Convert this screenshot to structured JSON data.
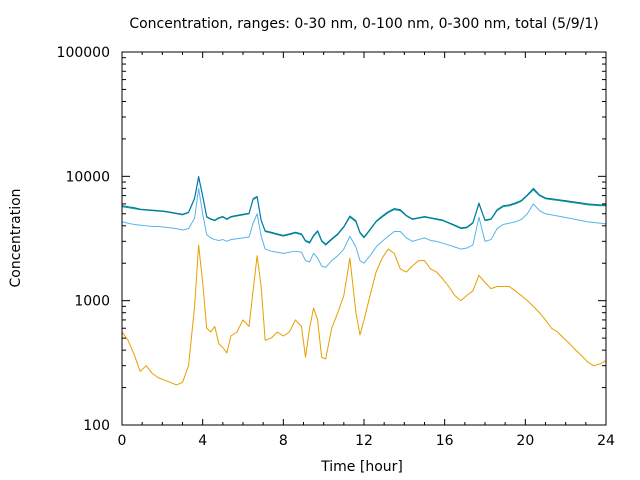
{
  "chart_data": {
    "type": "line",
    "title": "Concentration, ranges: 0-30 nm, 0-100 nm, 0-300 nm, total (5/9/1)",
    "xlabel": "Time [hour]",
    "ylabel": "Concentration",
    "xlim": [
      0,
      24
    ],
    "ylim": [
      100,
      100000
    ],
    "y_scale": "log",
    "grid": false,
    "x_ticks": [
      {
        "value": 0,
        "label": "0"
      },
      {
        "value": 4,
        "label": "4"
      },
      {
        "value": 8,
        "label": "8"
      },
      {
        "value": 12,
        "label": "12"
      },
      {
        "value": 16,
        "label": "16"
      },
      {
        "value": 20,
        "label": "20"
      },
      {
        "value": 24,
        "label": "24"
      }
    ],
    "y_ticks": [
      {
        "value": 100,
        "label": "100"
      },
      {
        "value": 1000,
        "label": "1000"
      },
      {
        "value": 10000,
        "label": "10000"
      },
      {
        "value": 100000,
        "label": "100000"
      }
    ],
    "series": [
      {
        "color": "#e69f00",
        "x": [
          0,
          0.3,
          0.6,
          0.9,
          1.2,
          1.5,
          1.8,
          2.1,
          2.4,
          2.7,
          3.0,
          3.3,
          3.6,
          3.8,
          4.0,
          4.2,
          4.4,
          4.6,
          4.8,
          5.0,
          5.2,
          5.4,
          5.7,
          6.0,
          6.3,
          6.5,
          6.7,
          6.9,
          7.1,
          7.4,
          7.7,
          8.0,
          8.3,
          8.6,
          8.9,
          9.1,
          9.3,
          9.5,
          9.7,
          9.9,
          10.1,
          10.4,
          10.7,
          11.0,
          11.3,
          11.6,
          11.8,
          12.0,
          12.3,
          12.6,
          12.9,
          13.2,
          13.5,
          13.8,
          14.1,
          14.4,
          14.7,
          15.0,
          15.3,
          15.6,
          15.9,
          16.2,
          16.5,
          16.8,
          17.1,
          17.4,
          17.7,
          18.0,
          18.3,
          18.6,
          18.9,
          19.2,
          19.5,
          19.8,
          20.1,
          20.4,
          20.7,
          21.0,
          21.3,
          21.6,
          21.9,
          22.2,
          22.5,
          22.8,
          23.1,
          23.4,
          23.7,
          24.0
        ],
        "values": [
          560,
          480,
          370,
          270,
          300,
          260,
          240,
          230,
          220,
          210,
          220,
          300,
          900,
          2800,
          1400,
          600,
          560,
          620,
          450,
          420,
          380,
          520,
          560,
          700,
          620,
          1200,
          2300,
          1300,
          480,
          500,
          560,
          520,
          560,
          700,
          620,
          350,
          600,
          870,
          700,
          350,
          340,
          600,
          800,
          1100,
          2200,
          800,
          530,
          700,
          1100,
          1700,
          2200,
          2600,
          2400,
          1800,
          1700,
          1900,
          2100,
          2100,
          1800,
          1700,
          1500,
          1300,
          1100,
          1000,
          1100,
          1200,
          1600,
          1400,
          1250,
          1300,
          1300,
          1300,
          1200,
          1100,
          1000,
          900,
          800,
          700,
          600,
          560,
          500,
          450,
          400,
          360,
          320,
          300,
          310,
          330
        ]
      },
      {
        "color": "#56b4e9",
        "x": [
          0,
          0.3,
          0.6,
          0.9,
          1.2,
          1.5,
          1.8,
          2.1,
          2.4,
          2.7,
          3.0,
          3.3,
          3.6,
          3.8,
          4.0,
          4.2,
          4.4,
          4.6,
          4.8,
          5.0,
          5.2,
          5.4,
          5.7,
          6.0,
          6.3,
          6.5,
          6.7,
          6.9,
          7.1,
          7.4,
          7.7,
          8.0,
          8.3,
          8.6,
          8.9,
          9.1,
          9.3,
          9.5,
          9.7,
          9.9,
          10.1,
          10.4,
          10.7,
          11.0,
          11.3,
          11.6,
          11.8,
          12.0,
          12.3,
          12.6,
          12.9,
          13.2,
          13.5,
          13.8,
          14.1,
          14.4,
          14.7,
          15.0,
          15.3,
          15.6,
          15.9,
          16.2,
          16.5,
          16.8,
          17.1,
          17.4,
          17.7,
          18.0,
          18.3,
          18.6,
          18.9,
          19.2,
          19.5,
          19.8,
          20.1,
          20.4,
          20.7,
          21.0,
          21.3,
          21.6,
          21.9,
          22.2,
          22.5,
          22.8,
          23.1,
          23.4,
          23.7,
          24.0
        ],
        "values": [
          4300,
          4200,
          4100,
          4050,
          4000,
          3950,
          3950,
          3900,
          3850,
          3800,
          3700,
          3800,
          4600,
          8000,
          5000,
          3400,
          3200,
          3100,
          3050,
          3100,
          3000,
          3100,
          3150,
          3200,
          3250,
          4200,
          5000,
          3300,
          2600,
          2500,
          2450,
          2400,
          2450,
          2500,
          2450,
          2100,
          2050,
          2400,
          2200,
          1900,
          1850,
          2100,
          2300,
          2600,
          3300,
          2700,
          2100,
          2000,
          2300,
          2700,
          3000,
          3300,
          3600,
          3600,
          3200,
          3000,
          3100,
          3200,
          3050,
          3000,
          2900,
          2800,
          2700,
          2600,
          2650,
          2800,
          4700,
          3000,
          3100,
          3800,
          4100,
          4200,
          4300,
          4500,
          5000,
          6000,
          5300,
          5000,
          4900,
          4800,
          4700,
          4600,
          4500,
          4400,
          4300,
          4250,
          4200,
          4150
        ]
      },
      {
        "color": "#009e73",
        "x": [
          0,
          0.3,
          0.6,
          0.9,
          1.2,
          1.5,
          1.8,
          2.1,
          2.4,
          2.7,
          3.0,
          3.3,
          3.6,
          3.8,
          4.0,
          4.2,
          4.4,
          4.6,
          4.8,
          5.0,
          5.2,
          5.4,
          5.7,
          6.0,
          6.3,
          6.5,
          6.7,
          6.9,
          7.1,
          7.4,
          7.7,
          8.0,
          8.3,
          8.6,
          8.9,
          9.1,
          9.3,
          9.5,
          9.7,
          9.9,
          10.1,
          10.4,
          10.7,
          11.0,
          11.3,
          11.6,
          11.8,
          12.0,
          12.3,
          12.6,
          12.9,
          13.2,
          13.5,
          13.8,
          14.1,
          14.4,
          14.7,
          15.0,
          15.3,
          15.6,
          15.9,
          16.2,
          16.5,
          16.8,
          17.1,
          17.4,
          17.7,
          18.0,
          18.3,
          18.6,
          18.9,
          19.2,
          19.5,
          19.8,
          20.1,
          20.4,
          20.7,
          21.0,
          21.3,
          21.6,
          21.9,
          22.2,
          22.5,
          22.8,
          23.1,
          23.4,
          23.7,
          24.0
        ],
        "values": [
          5700,
          5600,
          5500,
          5400,
          5350,
          5300,
          5250,
          5200,
          5100,
          5000,
          4900,
          5100,
          6600,
          9800,
          6900,
          4700,
          4500,
          4400,
          4600,
          4700,
          4500,
          4700,
          4800,
          4900,
          5000,
          6500,
          6800,
          4400,
          3600,
          3500,
          3400,
          3300,
          3400,
          3500,
          3400,
          3000,
          2900,
          3300,
          3600,
          3000,
          2800,
          3100,
          3400,
          3900,
          4700,
          4300,
          3500,
          3200,
          3700,
          4300,
          4700,
          5100,
          5400,
          5300,
          4800,
          4500,
          4600,
          4700,
          4600,
          4500,
          4400,
          4200,
          4000,
          3800,
          3850,
          4200,
          6000,
          4400,
          4500,
          5300,
          5700,
          5800,
          6000,
          6300,
          7000,
          7800,
          7000,
          6600,
          6500,
          6400,
          6300,
          6200,
          6100,
          6000,
          5900,
          5850,
          5800,
          5800
        ]
      },
      {
        "color": "#0072b2",
        "x": [
          0,
          0.3,
          0.6,
          0.9,
          1.2,
          1.5,
          1.8,
          2.1,
          2.4,
          2.7,
          3.0,
          3.3,
          3.6,
          3.8,
          4.0,
          4.2,
          4.4,
          4.6,
          4.8,
          5.0,
          5.2,
          5.4,
          5.7,
          6.0,
          6.3,
          6.5,
          6.7,
          6.9,
          7.1,
          7.4,
          7.7,
          8.0,
          8.3,
          8.6,
          8.9,
          9.1,
          9.3,
          9.5,
          9.7,
          9.9,
          10.1,
          10.4,
          10.7,
          11.0,
          11.3,
          11.6,
          11.8,
          12.0,
          12.3,
          12.6,
          12.9,
          13.2,
          13.5,
          13.8,
          14.1,
          14.4,
          14.7,
          15.0,
          15.3,
          15.6,
          15.9,
          16.2,
          16.5,
          16.8,
          17.1,
          17.4,
          17.7,
          18.0,
          18.3,
          18.6,
          18.9,
          19.2,
          19.5,
          19.8,
          20.1,
          20.4,
          20.7,
          21.0,
          21.3,
          21.6,
          21.9,
          22.2,
          22.5,
          22.8,
          23.1,
          23.4,
          23.7,
          24.0
        ],
        "values": [
          5800,
          5700,
          5600,
          5450,
          5400,
          5350,
          5300,
          5250,
          5150,
          5050,
          4950,
          5150,
          6700,
          10000,
          7000,
          4750,
          4550,
          4450,
          4650,
          4750,
          4550,
          4750,
          4850,
          4950,
          5050,
          6600,
          6900,
          4450,
          3650,
          3550,
          3450,
          3350,
          3450,
          3550,
          3450,
          3050,
          2950,
          3350,
          3650,
          3050,
          2850,
          3150,
          3450,
          3950,
          4800,
          4400,
          3550,
          3250,
          3750,
          4350,
          4800,
          5200,
          5500,
          5400,
          4850,
          4550,
          4650,
          4750,
          4650,
          4550,
          4450,
          4250,
          4050,
          3850,
          3900,
          4250,
          6100,
          4450,
          4550,
          5400,
          5800,
          5900,
          6100,
          6400,
          7100,
          8000,
          7100,
          6700,
          6600,
          6500,
          6400,
          6300,
          6200,
          6100,
          6000,
          5950,
          5900,
          5900
        ]
      }
    ]
  }
}
